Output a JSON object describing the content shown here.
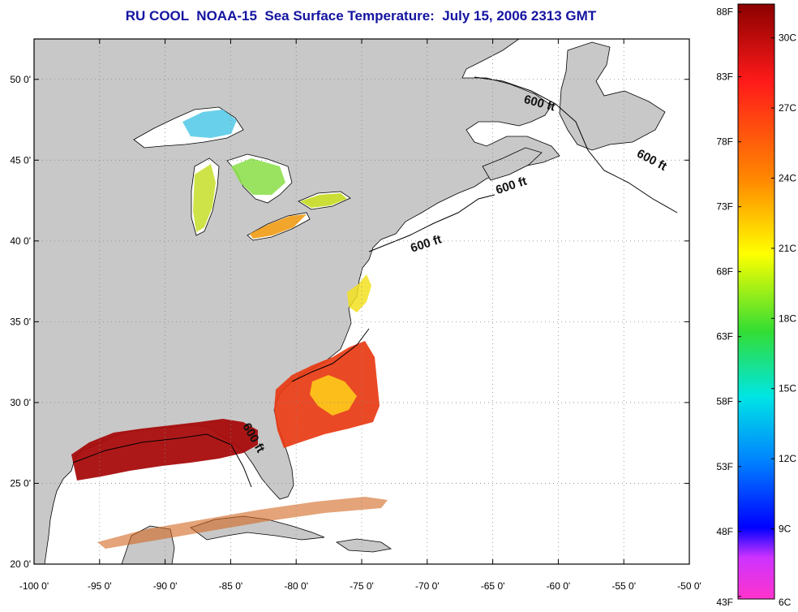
{
  "title": "RU COOL  NOAA-15  Sea Surface Temperature:  July 15, 2006 2313 GMT",
  "map": {
    "lon_range": [
      -100,
      -50
    ],
    "lat_range": [
      20,
      52.5
    ],
    "lon_ticks": [
      "-100 0'",
      "-95 0'",
      "-90 0'",
      "-85 0'",
      "-80 0'",
      "-75 0'",
      "-70 0'",
      "-65 0'",
      "-60 0'",
      "-55 0'",
      "-50 0'"
    ],
    "lat_ticks": [
      "20 0'",
      "25 0'",
      "30 0'",
      "35 0'",
      "40 0'",
      "45 0'",
      "50 0'"
    ],
    "grid": "dotted",
    "land_color": "#c8c8c8",
    "ocean_color": "#ffffff",
    "isobath_labels": [
      {
        "text": "600 ft",
        "lon": -61.5,
        "lat": 48.3,
        "rotate": 15
      },
      {
        "text": "600 ft",
        "lon": -53.0,
        "lat": 44.8,
        "rotate": 28
      },
      {
        "text": "600 ft",
        "lon": -63.5,
        "lat": 43.2,
        "rotate": -18
      },
      {
        "text": "600 ft",
        "lon": -70.0,
        "lat": 39.6,
        "rotate": -18
      },
      {
        "text": "600 ft",
        "lon": -83.5,
        "lat": 27.7,
        "rotate": 60
      }
    ]
  },
  "colorbar": {
    "fahrenheit_labels": [
      "88F",
      "83F",
      "78F",
      "73F",
      "68F",
      "63F",
      "58F",
      "53F",
      "48F",
      "43F"
    ],
    "celsius_labels": [
      "30C",
      "27C",
      "24C",
      "21C",
      "18C",
      "15C",
      "12C",
      "9C",
      "6C"
    ],
    "colors_top_to_bottom": [
      "#8b0000",
      "#ff1a1a",
      "#ff8c00",
      "#ffff00",
      "#33dd33",
      "#00e5e5",
      "#0080ff",
      "#0000ff",
      "#cc33ff",
      "#ff33cc"
    ]
  }
}
